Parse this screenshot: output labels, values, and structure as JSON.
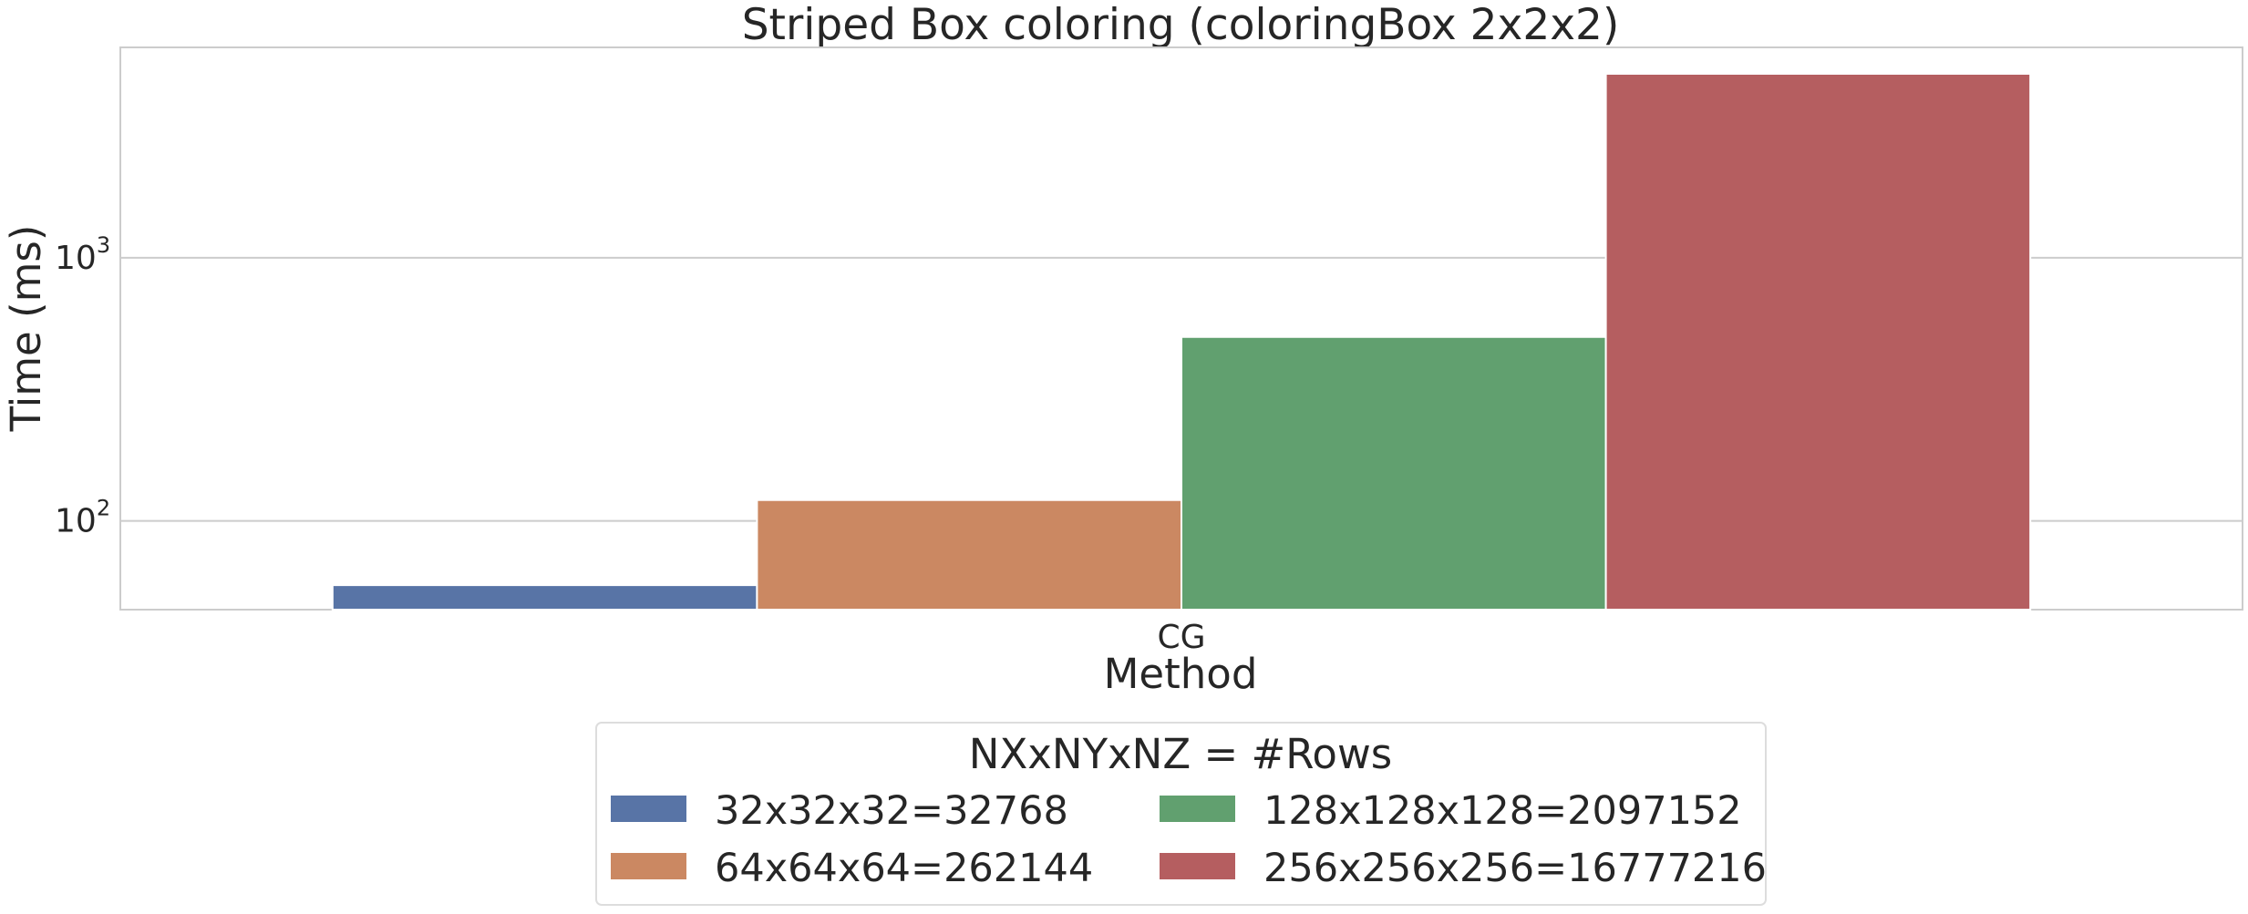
{
  "chart_data": {
    "type": "bar",
    "title": "Striped Box coloring (coloringBox 2x2x2)",
    "xlabel": "Method",
    "ylabel": "Time (ms)",
    "yscale": "log",
    "ylim": [
      46,
      6300
    ],
    "yticks": [
      {
        "value": 100,
        "base": "10",
        "exp": "2"
      },
      {
        "value": 1000,
        "base": "10",
        "exp": "3"
      }
    ],
    "grid": true,
    "categories": [
      "CG"
    ],
    "legend": {
      "title": "NXxNYxNZ = #Rows",
      "placement": "bottom-center"
    },
    "series": [
      {
        "name": "32x32x32=32768",
        "values": [
          57
        ],
        "color": "#5874a6"
      },
      {
        "name": "64x64x64=262144",
        "values": [
          120
        ],
        "color": "#cb8862"
      },
      {
        "name": "128x128x128=2097152",
        "values": [
          500
        ],
        "color": "#61a06f"
      },
      {
        "name": "256x256x256=16777216",
        "values": [
          5000
        ],
        "color": "#b55e60"
      }
    ]
  }
}
